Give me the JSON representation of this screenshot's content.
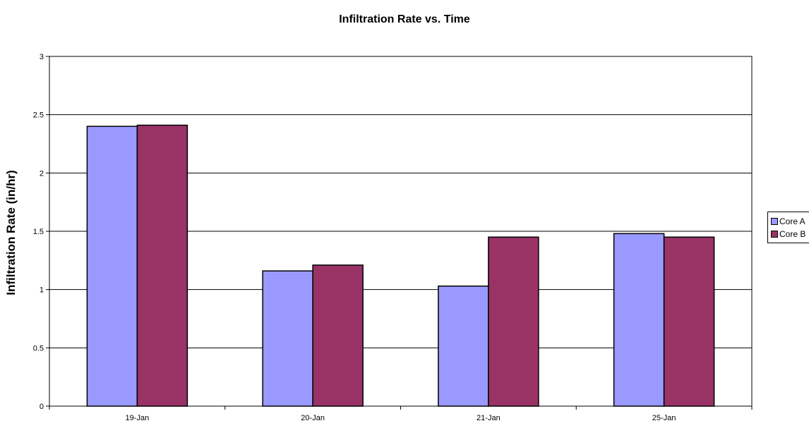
{
  "chart_data": {
    "type": "bar",
    "title": "Infiltration Rate vs. Time",
    "xlabel": "",
    "ylabel": "Infiltration Rate (in/hr)",
    "categories": [
      "19-Jan",
      "20-Jan",
      "21-Jan",
      "25-Jan"
    ],
    "series": [
      {
        "name": "Core A",
        "values": [
          2.4,
          1.16,
          1.03,
          1.48
        ],
        "color": "#9999ff"
      },
      {
        "name": "Core B",
        "values": [
          2.41,
          1.21,
          1.45,
          1.45
        ],
        "color": "#993366"
      }
    ],
    "ylim": [
      0,
      3
    ],
    "yticks": [
      "0",
      "0.5",
      "1",
      "1.5",
      "2",
      "2.5",
      "3"
    ],
    "grid": true,
    "legend_position": "right"
  }
}
